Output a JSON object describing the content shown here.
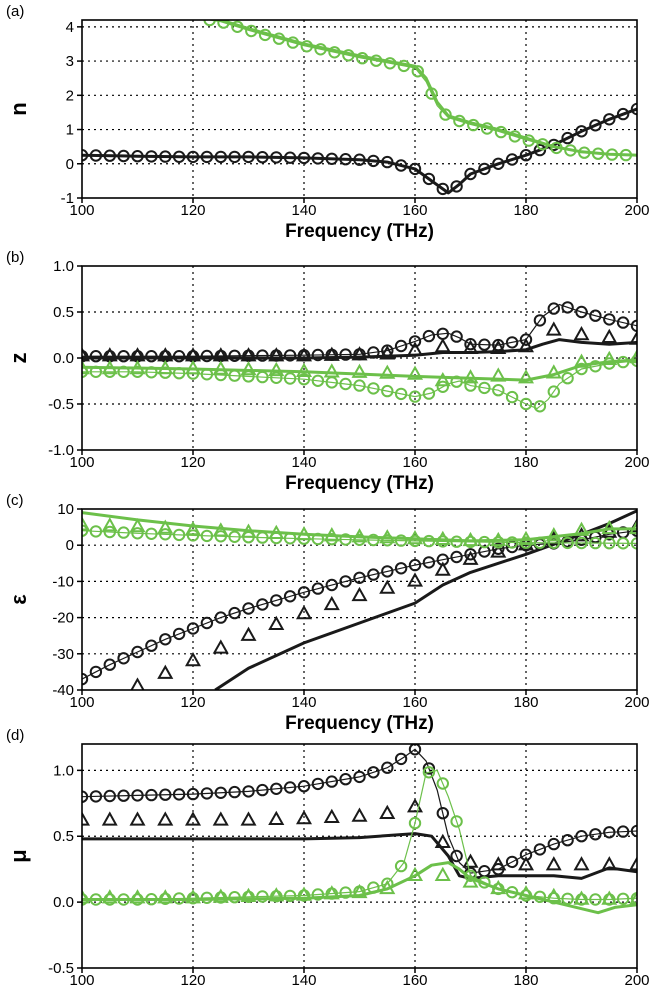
{
  "colors": {
    "black_series": "#1a1a1a",
    "green_series": "#6cc04a",
    "grid": "#000000"
  },
  "chart_data": [
    {
      "type": "line",
      "panel_label": "(a)",
      "xlabel": "Frequency (THz)",
      "ylabel": "n",
      "xlim": [
        100,
        200
      ],
      "ylim": [
        -1,
        4.2
      ],
      "xticks": [
        100,
        120,
        140,
        160,
        180,
        200
      ],
      "yticks": [
        -1,
        0,
        1,
        2,
        3,
        4
      ],
      "ytick_labels": [
        "-1",
        "0",
        "1",
        "2",
        "3",
        "4"
      ],
      "grid": true,
      "series": [
        {
          "color": "black",
          "marker": "line",
          "x": [
            100,
            110,
            120,
            130,
            140,
            150,
            155,
            160,
            163,
            166,
            168,
            170,
            175,
            180,
            185,
            190,
            195,
            200
          ],
          "y": [
            0.25,
            0.22,
            0.2,
            0.2,
            0.17,
            0.12,
            0.05,
            -0.15,
            -0.5,
            -0.85,
            -0.6,
            -0.3,
            0.0,
            0.25,
            0.55,
            0.95,
            1.3,
            1.6
          ]
        },
        {
          "color": "black",
          "marker": "circle",
          "x": [
            100,
            110,
            120,
            130,
            140,
            150,
            155,
            160,
            163,
            166,
            168,
            170,
            175,
            180,
            185,
            190,
            195,
            200
          ],
          "y": [
            0.25,
            0.22,
            0.2,
            0.2,
            0.17,
            0.12,
            0.05,
            -0.15,
            -0.5,
            -0.85,
            -0.6,
            -0.3,
            0.0,
            0.25,
            0.55,
            0.95,
            1.3,
            1.6
          ]
        },
        {
          "color": "green",
          "marker": "line",
          "x": [
            120,
            125,
            130,
            140,
            150,
            155,
            160,
            162,
            164,
            166,
            168,
            170,
            175,
            180,
            185,
            190,
            195,
            200
          ],
          "y": [
            4.3,
            4.2,
            3.95,
            3.5,
            3.15,
            3.0,
            2.85,
            2.5,
            1.8,
            1.4,
            1.3,
            1.2,
            1.0,
            0.75,
            0.5,
            0.35,
            0.28,
            0.25
          ]
        },
        {
          "color": "green",
          "marker": "circle",
          "x": [
            123,
            125,
            130,
            140,
            150,
            155,
            160,
            162,
            164,
            166,
            168,
            170,
            175,
            180,
            185,
            190,
            195,
            200
          ],
          "y": [
            4.2,
            4.15,
            3.9,
            3.45,
            3.1,
            2.95,
            2.8,
            2.4,
            1.7,
            1.35,
            1.25,
            1.15,
            0.95,
            0.7,
            0.48,
            0.33,
            0.27,
            0.24
          ]
        }
      ]
    },
    {
      "type": "line",
      "panel_label": "(b)",
      "xlabel": "Frequency (THz)",
      "ylabel": "z",
      "xlim": [
        100,
        200
      ],
      "ylim": [
        -1,
        1
      ],
      "xticks": [
        100,
        120,
        140,
        160,
        180,
        200
      ],
      "yticks": [
        -1,
        -0.5,
        0,
        0.5,
        1
      ],
      "ytick_labels": [
        "-1.0",
        "-0.5",
        "0.0",
        "0.5",
        "1.0"
      ],
      "grid": true,
      "series": [
        {
          "color": "black",
          "marker": "circle",
          "x": [
            100,
            120,
            140,
            150,
            155,
            160,
            163,
            166,
            168,
            170,
            175,
            180,
            183,
            186,
            190,
            195,
            200
          ],
          "y": [
            0.02,
            0.02,
            0.03,
            0.04,
            0.08,
            0.18,
            0.25,
            0.27,
            0.22,
            0.15,
            0.14,
            0.2,
            0.45,
            0.58,
            0.5,
            0.42,
            0.35
          ]
        },
        {
          "color": "black",
          "marker": "triangle",
          "x": [
            100,
            120,
            140,
            150,
            155,
            160,
            165,
            170,
            175,
            180,
            185,
            190,
            195,
            200
          ],
          "y": [
            0.02,
            0.02,
            0.02,
            0.03,
            0.04,
            0.08,
            0.12,
            0.1,
            0.1,
            0.12,
            0.3,
            0.25,
            0.22,
            0.2
          ]
        },
        {
          "color": "black",
          "marker": "line",
          "x": [
            100,
            120,
            140,
            150,
            160,
            165,
            170,
            175,
            180,
            183,
            186,
            190,
            195,
            200
          ],
          "y": [
            0.0,
            0.0,
            0.0,
            0.01,
            0.03,
            0.06,
            0.06,
            0.07,
            0.09,
            0.15,
            0.2,
            0.17,
            0.15,
            0.17
          ]
        },
        {
          "color": "green",
          "marker": "line",
          "x": [
            100,
            120,
            140,
            160,
            170,
            180,
            185,
            190,
            195,
            200
          ],
          "y": [
            -0.1,
            -0.12,
            -0.15,
            -0.2,
            -0.22,
            -0.24,
            -0.18,
            -0.08,
            -0.04,
            -0.02
          ]
        },
        {
          "color": "green",
          "marker": "triangle",
          "x": [
            100,
            110,
            120,
            130,
            140,
            150,
            160,
            165,
            170,
            175,
            180,
            183,
            186,
            190,
            195,
            200
          ],
          "y": [
            -0.12,
            -0.12,
            -0.12,
            -0.13,
            -0.15,
            -0.16,
            -0.18,
            -0.25,
            -0.22,
            -0.2,
            -0.22,
            -0.26,
            -0.12,
            -0.05,
            -0.02,
            0.0
          ]
        },
        {
          "color": "green",
          "marker": "circle",
          "x": [
            100,
            110,
            120,
            130,
            140,
            150,
            155,
            160,
            163,
            166,
            168,
            170,
            175,
            180,
            182,
            184,
            186,
            190,
            195,
            200
          ],
          "y": [
            -0.15,
            -0.15,
            -0.17,
            -0.2,
            -0.23,
            -0.3,
            -0.36,
            -0.42,
            -0.38,
            -0.28,
            -0.25,
            -0.3,
            -0.35,
            -0.5,
            -0.55,
            -0.45,
            -0.28,
            -0.12,
            -0.06,
            -0.03
          ]
        }
      ]
    },
    {
      "type": "line",
      "panel_label": "(c)",
      "xlabel": "Frequency (THz)",
      "ylabel": "ε",
      "xlim": [
        100,
        200
      ],
      "ylim": [
        -40,
        10
      ],
      "xticks": [
        100,
        120,
        140,
        160,
        180,
        200
      ],
      "yticks": [
        -40,
        -30,
        -20,
        -10,
        0,
        10
      ],
      "ytick_labels": [
        "-40",
        "-30",
        "-20",
        "-10",
        "0",
        "10"
      ],
      "grid": true,
      "series": [
        {
          "color": "black",
          "marker": "circle",
          "x": [
            100,
            105,
            110,
            115,
            120,
            125,
            130,
            140,
            150,
            160,
            165,
            170,
            175,
            180,
            185,
            190,
            195,
            200
          ],
          "y": [
            -37,
            -33,
            -29.5,
            -26,
            -23,
            -20,
            -17.5,
            -13,
            -9,
            -5.5,
            -4,
            -2.5,
            -1,
            0,
            0.5,
            1.5,
            3,
            4
          ]
        },
        {
          "color": "black",
          "marker": "triangle",
          "x": [
            110,
            120,
            130,
            140,
            150,
            160,
            165,
            170,
            175,
            180,
            185,
            190,
            195,
            200
          ],
          "y": [
            -39,
            -32,
            -25,
            -19,
            -14,
            -10,
            -7,
            -4,
            -2,
            0,
            1.5,
            2.5,
            3.5,
            5
          ]
        },
        {
          "color": "black",
          "marker": "line",
          "x": [
            124,
            130,
            140,
            150,
            160,
            162,
            165,
            170,
            180,
            190,
            195,
            200
          ],
          "y": [
            -40,
            -34,
            -27,
            -21.5,
            -16,
            -14,
            -11,
            -7.5,
            -2.5,
            3,
            6,
            9.5
          ]
        },
        {
          "color": "green",
          "marker": "line",
          "x": [
            100,
            110,
            120,
            130,
            140,
            150,
            160,
            170,
            180,
            190,
            195,
            200
          ],
          "y": [
            9,
            7,
            5.3,
            4,
            3,
            2.3,
            1.8,
            1.2,
            1.5,
            3.2,
            4.5,
            4.5
          ]
        },
        {
          "color": "green",
          "marker": "triangle",
          "x": [
            100,
            110,
            120,
            130,
            140,
            150,
            160,
            165,
            170,
            175,
            180,
            185,
            190,
            195,
            200
          ],
          "y": [
            5.5,
            5,
            4.2,
            3.5,
            2.8,
            2.2,
            1.7,
            1.5,
            1.2,
            1.2,
            1.5,
            2.5,
            4,
            4.5,
            4.5
          ]
        },
        {
          "color": "green",
          "marker": "circle",
          "x": [
            100,
            110,
            120,
            130,
            140,
            150,
            160,
            170,
            180,
            190,
            200
          ],
          "y": [
            4,
            3.3,
            2.7,
            2.2,
            1.8,
            1.5,
            1.2,
            0.9,
            0.7,
            0.6,
            0.5
          ]
        }
      ]
    },
    {
      "type": "line",
      "panel_label": "(d)",
      "xlabel": "Frequency (THz)",
      "ylabel": "μ",
      "xlim": [
        100,
        200
      ],
      "ylim": [
        -0.5,
        1.2
      ],
      "xticks": [
        100,
        120,
        140,
        160,
        180,
        200
      ],
      "yticks": [
        -0.5,
        0,
        0.5,
        1
      ],
      "ytick_labels": [
        "-0.5",
        "0.0",
        "0.5",
        "1.0"
      ],
      "grid": true,
      "series": [
        {
          "color": "black",
          "marker": "circle",
          "x": [
            100,
            110,
            120,
            130,
            140,
            150,
            155,
            158,
            160,
            162,
            164,
            166,
            168,
            170,
            175,
            180,
            185,
            190,
            195,
            200
          ],
          "y": [
            0.8,
            0.81,
            0.82,
            0.84,
            0.88,
            0.95,
            1.02,
            1.1,
            1.16,
            1.07,
            0.85,
            0.5,
            0.3,
            0.22,
            0.25,
            0.36,
            0.44,
            0.5,
            0.53,
            0.54
          ]
        },
        {
          "color": "black",
          "marker": "triangle",
          "x": [
            100,
            110,
            120,
            130,
            140,
            150,
            155,
            160,
            165,
            170,
            175,
            180,
            185,
            190,
            195,
            200
          ],
          "y": [
            0.62,
            0.62,
            0.62,
            0.62,
            0.63,
            0.65,
            0.67,
            0.72,
            0.45,
            0.3,
            0.28,
            0.28,
            0.28,
            0.28,
            0.28,
            0.28
          ]
        },
        {
          "color": "black",
          "marker": "line",
          "x": [
            100,
            120,
            140,
            150,
            160,
            163,
            166,
            168,
            170,
            175,
            180,
            185,
            190,
            195,
            200
          ],
          "y": [
            0.48,
            0.48,
            0.48,
            0.49,
            0.52,
            0.5,
            0.35,
            0.2,
            0.18,
            0.2,
            0.2,
            0.2,
            0.18,
            0.26,
            0.23
          ]
        },
        {
          "color": "green",
          "marker": "line",
          "x": [
            100,
            120,
            140,
            150,
            155,
            160,
            163,
            166,
            168,
            170,
            175,
            180,
            185,
            190,
            193,
            196,
            200
          ],
          "y": [
            0.02,
            0.02,
            0.03,
            0.05,
            0.1,
            0.2,
            0.28,
            0.3,
            0.25,
            0.18,
            0.1,
            0.05,
            0.0,
            -0.05,
            -0.08,
            -0.04,
            -0.02
          ]
        },
        {
          "color": "green",
          "marker": "triangle",
          "x": [
            100,
            110,
            120,
            130,
            140,
            150,
            155,
            160,
            165,
            170,
            175,
            180,
            185,
            190,
            195,
            200
          ],
          "y": [
            0.03,
            0.03,
            0.03,
            0.04,
            0.05,
            0.07,
            0.1,
            0.2,
            0.2,
            0.15,
            0.1,
            0.06,
            0.04,
            0.02,
            0.02,
            0.02
          ]
        },
        {
          "color": "green",
          "marker": "circle",
          "x": [
            100,
            110,
            120,
            130,
            140,
            150,
            155,
            158,
            160,
            162,
            164,
            166,
            168,
            170,
            175,
            180,
            185,
            190,
            195,
            200
          ],
          "y": [
            0.02,
            0.02,
            0.03,
            0.04,
            0.05,
            0.08,
            0.14,
            0.3,
            0.6,
            0.98,
            1.0,
            0.8,
            0.55,
            0.2,
            0.1,
            0.05,
            0.03,
            0.02,
            0.02,
            0.03
          ]
        }
      ]
    }
  ]
}
